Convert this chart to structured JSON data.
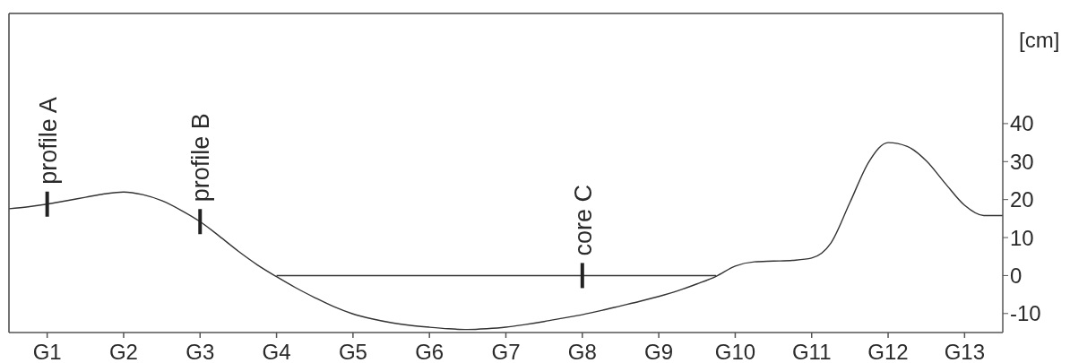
{
  "chart_data": {
    "type": "line",
    "ylabel": "[cm]",
    "ylim": [
      -15,
      69
    ],
    "categories": [
      null,
      null,
      "G1",
      null,
      null,
      null,
      "G2",
      null,
      null,
      null,
      "G3",
      null,
      null,
      null,
      "G4",
      null,
      null,
      null,
      "G5",
      null,
      null,
      null,
      "G6",
      null,
      null,
      null,
      "G7",
      null,
      null,
      null,
      "G8",
      null,
      null,
      null,
      "G9",
      null,
      null,
      null,
      "G10",
      null,
      null,
      null,
      "G11",
      null,
      null,
      null,
      "G12",
      null,
      null,
      null,
      "G13",
      null,
      null
    ],
    "yticks": [
      -10,
      0,
      10,
      20,
      30,
      40
    ],
    "grid": false,
    "legend": false,
    "marker": "none",
    "line_style": "solid",
    "series": [
      {
        "color": "#333333",
        "values": [
          17.6,
          18.1,
          18.8,
          19.7,
          20.6,
          21.5,
          22,
          21.3,
          19.7,
          17.2,
          14.2,
          10.4,
          6.4,
          2.8,
          -0.3,
          -3.2,
          -5.8,
          -8.2,
          -10.1,
          -11.4,
          -12.4,
          -13.1,
          -13.6,
          -14,
          -14.2,
          -14,
          -13.6,
          -12.9,
          -12.1,
          -11.2,
          -10.3,
          -9.2,
          -8,
          -6.8,
          -5.5,
          -4,
          -2.2,
          -0.2,
          2.5,
          3.6,
          3.8,
          4,
          4.6,
          8.5,
          19.2,
          30,
          35,
          34,
          30.2,
          24.2,
          18.5,
          15.8,
          15.8
        ]
      },
      {
        "color": "#333333",
        "values": [
          null,
          null,
          null,
          null,
          null,
          null,
          null,
          null,
          null,
          null,
          null,
          null,
          null,
          null,
          0,
          0,
          0,
          0,
          0,
          0,
          0,
          0,
          0,
          0,
          0,
          0,
          0,
          0,
          0,
          0,
          0,
          0,
          0,
          0,
          0,
          0,
          0,
          0,
          null,
          null,
          null,
          null,
          null,
          null,
          null,
          null,
          null,
          null,
          null,
          null,
          null,
          null,
          null
        ]
      }
    ],
    "annotations": [
      {
        "text": "profile A",
        "x": "G1",
        "y": 18.8
      },
      {
        "text": "profile B",
        "x": "G3",
        "y": 14.2
      },
      {
        "text": "core C",
        "x": "G8",
        "y": 0
      }
    ]
  }
}
